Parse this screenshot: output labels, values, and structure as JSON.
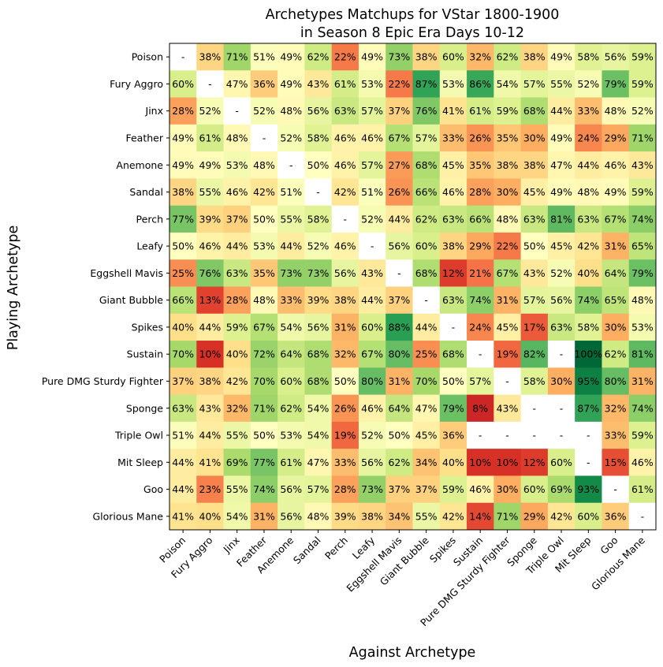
{
  "chart_data": {
    "type": "heatmap",
    "title_line1": "Archetypes Matchups for VStar 1800-1900",
    "title_line2": "in Season 8 Epic Era Days 10-12",
    "xlabel": "Against Archetype",
    "ylabel": "Playing Archetype",
    "color_scale": "red-yellow-green",
    "value_range": [
      0,
      100
    ],
    "rows": [
      "Poison",
      "Fury Aggro",
      "Jinx",
      "Feather",
      "Anemone",
      "Sandal",
      "Perch",
      "Leafy",
      "Eggshell Mavis",
      "Giant Bubble",
      "Spikes",
      "Sustain",
      "Pure DMG Sturdy Fighter",
      "Sponge",
      "Triple Owl",
      "Mit Sleep",
      "Goo",
      "Glorious Mane"
    ],
    "columns": [
      "Poison",
      "Fury Aggro",
      "Jinx",
      "Feather",
      "Anemone",
      "Sandal",
      "Perch",
      "Leafy",
      "Eggshell Mavis",
      "Giant Bubble",
      "Spikes",
      "Sustain",
      "Pure DMG Sturdy Fighter",
      "Sponge",
      "Triple Owl",
      "Mit Sleep",
      "Goo",
      "Glorious Mane"
    ],
    "values": [
      [
        null,
        38,
        71,
        51,
        49,
        62,
        22,
        49,
        73,
        38,
        60,
        32,
        62,
        38,
        49,
        58,
        56,
        59
      ],
      [
        60,
        null,
        47,
        36,
        49,
        43,
        61,
        53,
        22,
        87,
        53,
        86,
        54,
        57,
        55,
        52,
        79,
        59
      ],
      [
        28,
        52,
        null,
        52,
        48,
        56,
        63,
        57,
        37,
        76,
        41,
        61,
        59,
        68,
        44,
        33,
        48,
        52
      ],
      [
        49,
        61,
        48,
        null,
        52,
        58,
        46,
        46,
        67,
        57,
        33,
        26,
        35,
        30,
        49,
        24,
        29,
        71
      ],
      [
        49,
        49,
        53,
        48,
        null,
        50,
        46,
        57,
        27,
        68,
        45,
        35,
        38,
        38,
        47,
        44,
        46,
        43
      ],
      [
        38,
        55,
        46,
        42,
        51,
        null,
        42,
        51,
        26,
        66,
        46,
        28,
        30,
        45,
        49,
        48,
        49,
        59
      ],
      [
        77,
        39,
        37,
        50,
        55,
        58,
        null,
        52,
        44,
        62,
        63,
        66,
        48,
        63,
        81,
        63,
        67,
        74
      ],
      [
        50,
        46,
        44,
        53,
        44,
        52,
        46,
        null,
        56,
        60,
        38,
        29,
        22,
        50,
        45,
        42,
        31,
        65
      ],
      [
        25,
        76,
        63,
        35,
        73,
        73,
        56,
        43,
        null,
        68,
        12,
        21,
        67,
        43,
        52,
        40,
        64,
        79
      ],
      [
        66,
        13,
        28,
        48,
        33,
        39,
        38,
        44,
        37,
        null,
        63,
        74,
        31,
        57,
        56,
        74,
        65,
        48
      ],
      [
        40,
        44,
        59,
        67,
        54,
        56,
        31,
        60,
        88,
        44,
        null,
        24,
        45,
        17,
        63,
        58,
        30,
        53
      ],
      [
        70,
        10,
        40,
        72,
        64,
        68,
        32,
        67,
        80,
        25,
        68,
        null,
        19,
        82,
        null,
        100,
        62,
        81
      ],
      [
        37,
        38,
        42,
        70,
        60,
        68,
        50,
        80,
        31,
        70,
        50,
        57,
        null,
        58,
        30,
        95,
        80,
        31
      ],
      [
        63,
        43,
        32,
        71,
        62,
        54,
        26,
        46,
        64,
        47,
        79,
        8,
        43,
        null,
        null,
        87,
        32,
        74
      ],
      [
        51,
        44,
        55,
        50,
        53,
        54,
        19,
        52,
        50,
        45,
        36,
        null,
        null,
        null,
        null,
        null,
        33,
        59
      ],
      [
        44,
        41,
        69,
        77,
        61,
        47,
        33,
        56,
        62,
        34,
        40,
        10,
        10,
        12,
        60,
        null,
        15,
        46
      ],
      [
        44,
        23,
        55,
        74,
        56,
        57,
        28,
        73,
        37,
        37,
        59,
        46,
        30,
        60,
        69,
        93,
        null,
        61
      ],
      [
        41,
        40,
        54,
        31,
        56,
        48,
        39,
        38,
        34,
        55,
        42,
        14,
        71,
        29,
        42,
        60,
        36,
        null
      ]
    ],
    "missing_label": "-",
    "value_suffix": "%"
  }
}
